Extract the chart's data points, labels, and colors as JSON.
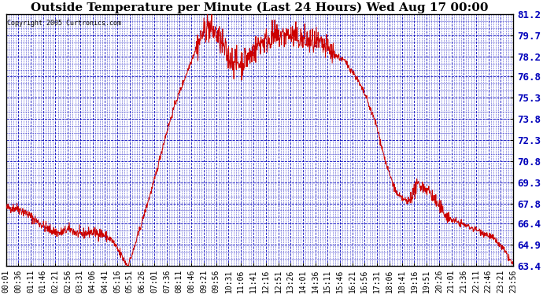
{
  "title": "Outside Temperature per Minute (Last 24 Hours) Wed Aug 17 00:00",
  "copyright": "Copyright 2005 Curtronics.com",
  "y_ticks": [
    63.4,
    64.9,
    66.4,
    67.8,
    69.3,
    70.8,
    72.3,
    73.8,
    75.3,
    76.8,
    78.2,
    79.7,
    81.2
  ],
  "y_min": 63.4,
  "y_max": 81.2,
  "x_labels": [
    "00:01",
    "00:36",
    "01:11",
    "01:46",
    "02:21",
    "02:56",
    "03:31",
    "04:06",
    "04:41",
    "05:16",
    "05:51",
    "06:26",
    "07:01",
    "07:36",
    "08:11",
    "08:46",
    "09:21",
    "09:56",
    "10:31",
    "11:06",
    "11:41",
    "12:16",
    "12:51",
    "13:26",
    "14:01",
    "14:36",
    "15:11",
    "15:46",
    "16:21",
    "16:56",
    "17:31",
    "18:06",
    "18:41",
    "19:16",
    "19:51",
    "20:26",
    "21:01",
    "21:36",
    "22:11",
    "22:46",
    "23:21",
    "23:56"
  ],
  "background_color": "#ffffff",
  "line_color": "#cc0000",
  "grid_color": "#0000bb",
  "title_fontsize": 11,
  "copyright_fontsize": 6,
  "tick_fontsize": 7,
  "ytick_fontsize": 9
}
